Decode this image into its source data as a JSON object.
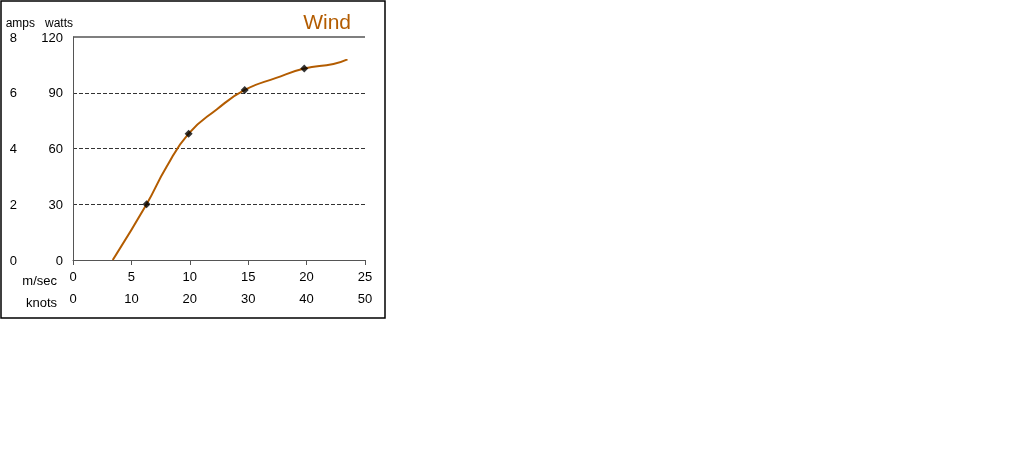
{
  "chart_data": {
    "type": "line",
    "title": "Wind",
    "xlabel": "m/sec",
    "x2label": "knots",
    "ylabel": "watts",
    "y2label": "amps",
    "xlim": [
      0,
      25
    ],
    "xticks": [
      0,
      5,
      10,
      15,
      20,
      25
    ],
    "x2lim": [
      0,
      50
    ],
    "x2ticks": [
      0,
      10,
      20,
      30,
      40,
      50
    ],
    "ylim": [
      0,
      120
    ],
    "yticks": [
      0,
      30,
      60,
      90,
      120
    ],
    "y2lim": [
      0,
      8
    ],
    "y2ticks": [
      0,
      2,
      4,
      6,
      8
    ],
    "grid": "y",
    "series": [
      {
        "color": "#b35c00",
        "marker": "none",
        "x": [
          3.4,
          6.3,
          8.0,
          9.9,
          12.3,
          14.7,
          17.4,
          19.8,
          22.3,
          23.5
        ],
        "values": [
          0,
          30,
          50,
          68,
          81,
          91.5,
          98,
          103,
          105.5,
          108
        ]
      },
      {
        "type": "scatter",
        "color": "#000000",
        "marker": "diamond",
        "x": [
          6.3,
          9.9,
          14.7,
          19.8
        ],
        "values": [
          30,
          68,
          91.5,
          103
        ]
      }
    ]
  }
}
